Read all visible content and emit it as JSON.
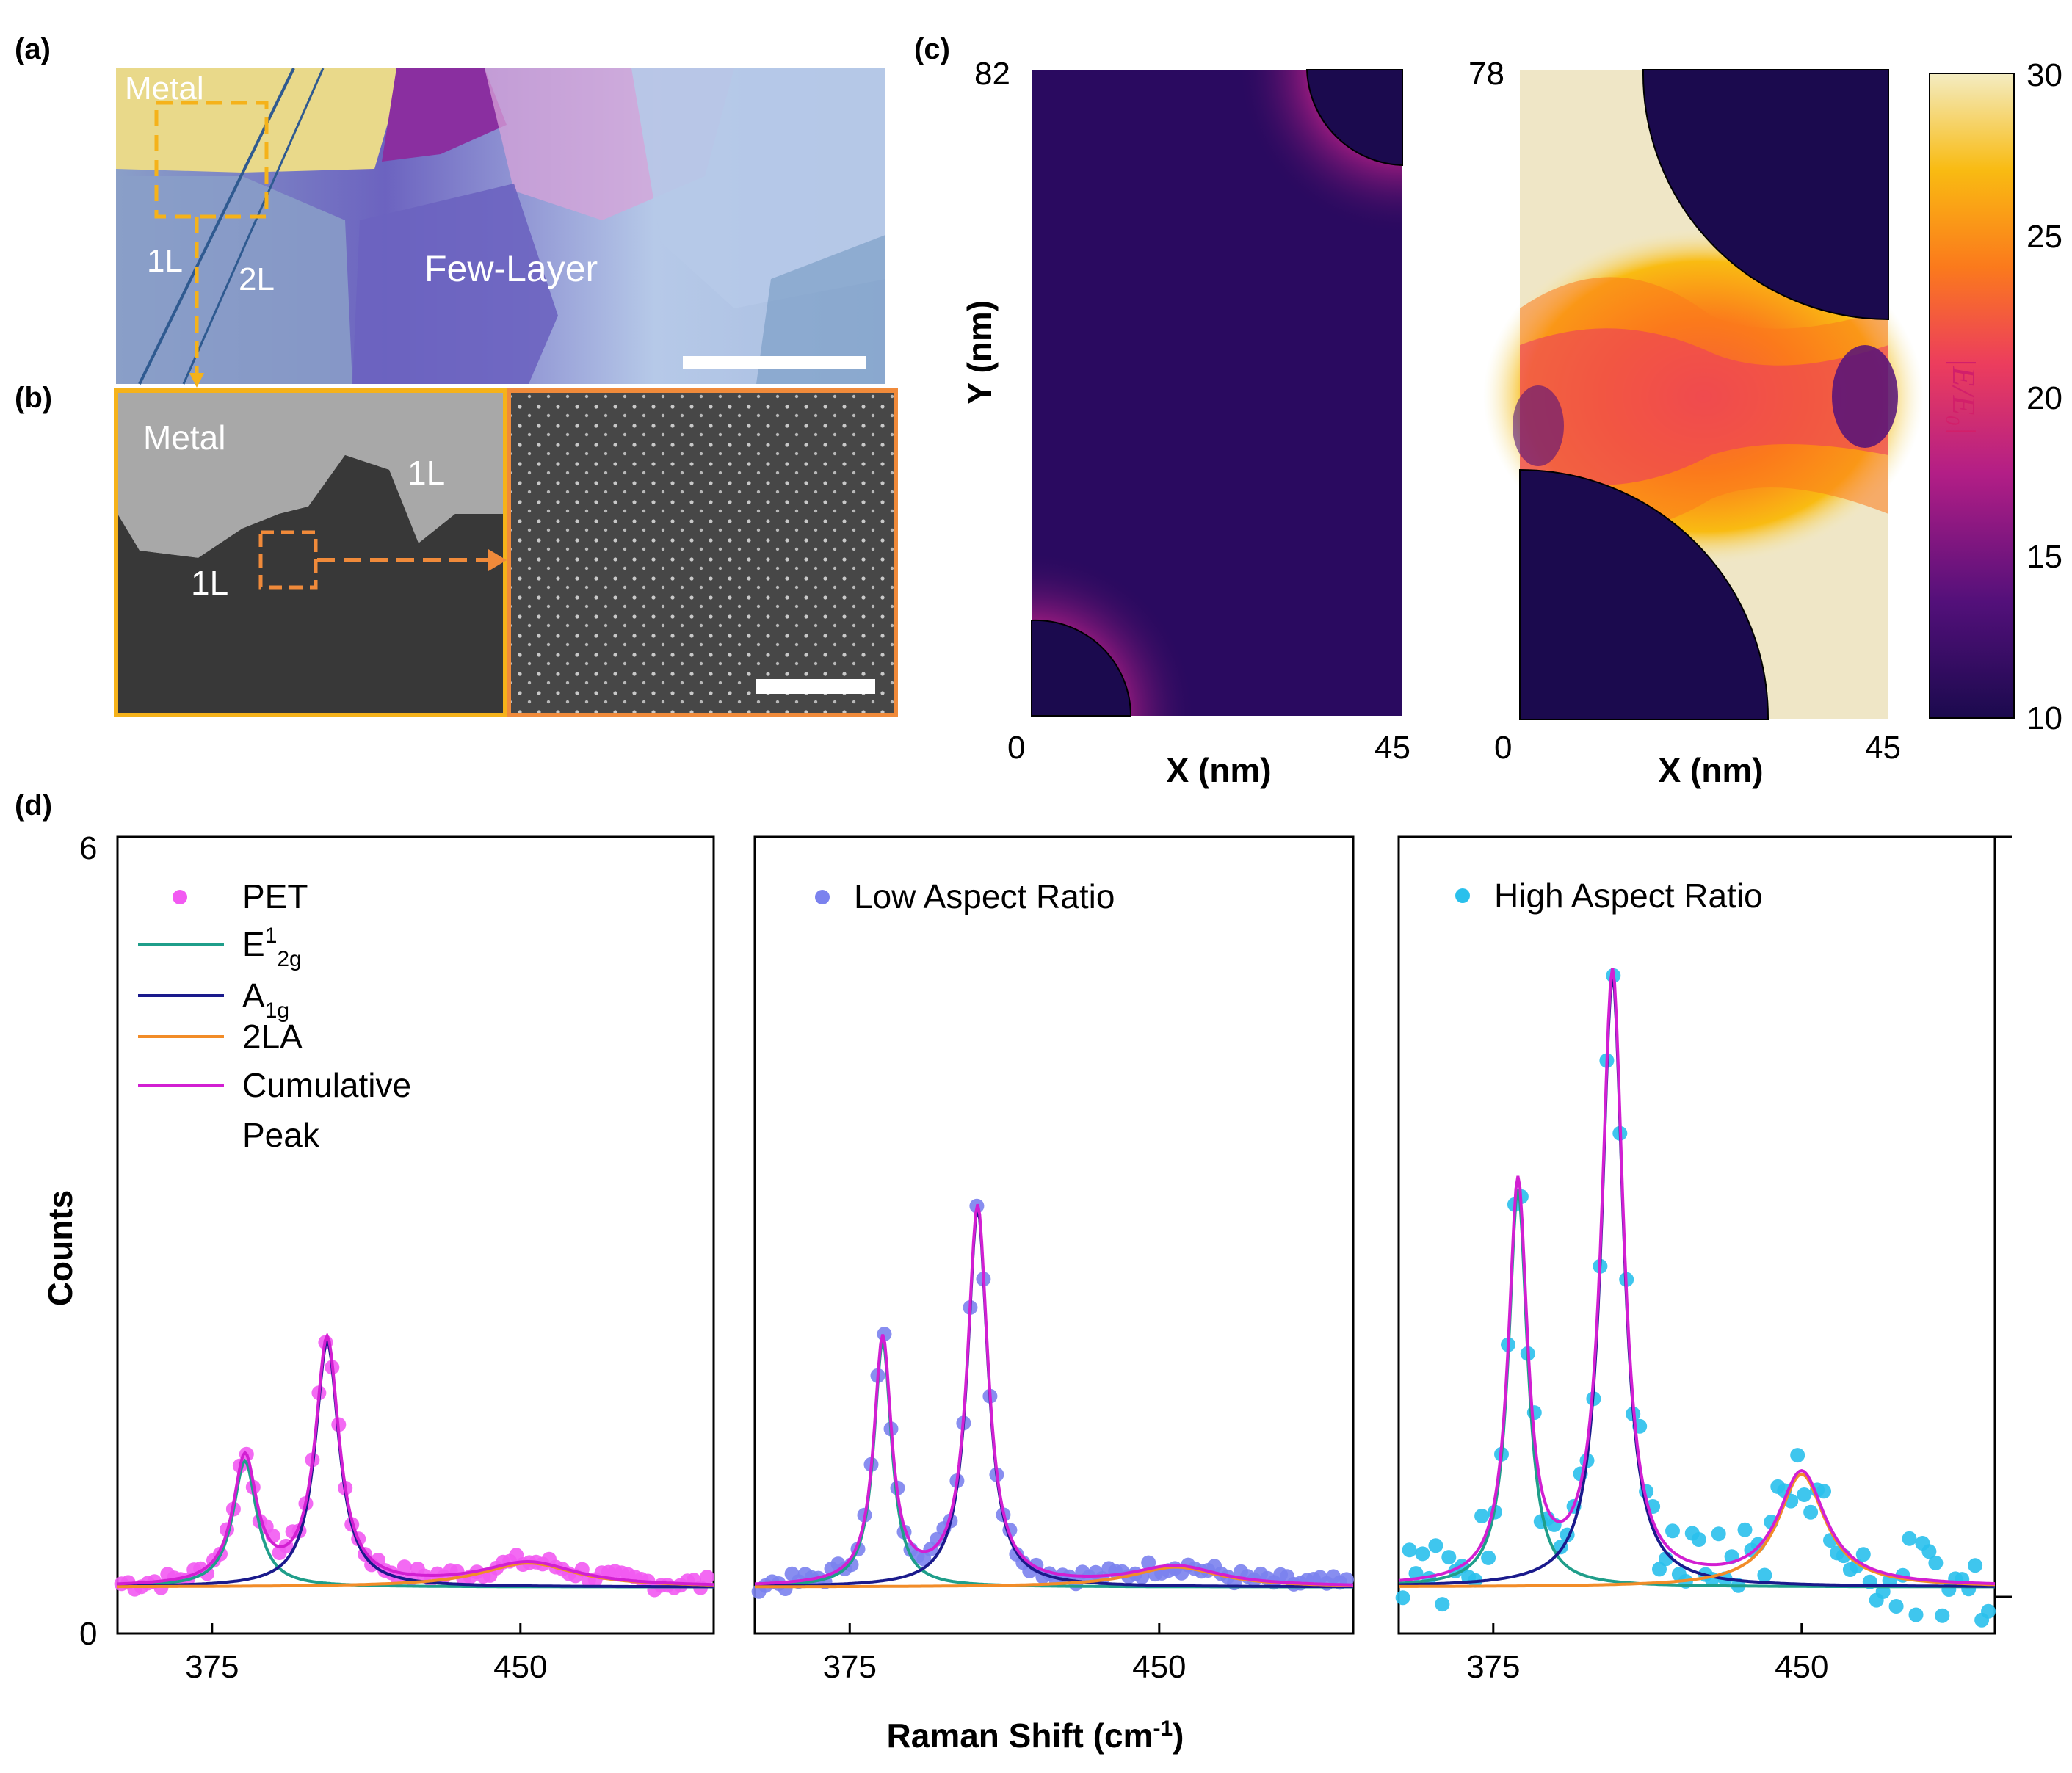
{
  "panels": {
    "a": {
      "label": "(a)",
      "regions": {
        "metal": "Metal",
        "one_layer": "1L",
        "two_layer": "2L",
        "few_layer": "Few-Layer"
      },
      "colors": {
        "metal": "#e9d98a",
        "one_layer": "#8a9fc8",
        "two_layer": "#6c63c0",
        "few_layer": "#b6c9e8",
        "purple_flake": "#8a2fa0",
        "highlight": "#f5b21a"
      }
    },
    "b": {
      "label": "(b)",
      "regions": {
        "metal": "Metal",
        "one_layer_top": "1L",
        "one_layer_bottom": "1L"
      },
      "colors": {
        "frame_left": "#f5b21a",
        "frame_right": "#f08a3a",
        "arrow": "#f08a3a"
      }
    },
    "c": {
      "label": "(c)",
      "left_map": {
        "y_max": "82",
        "x_min": "0",
        "x_max": "45"
      },
      "right_map": {
        "y_max": "78",
        "x_min": "0",
        "x_max": "45"
      },
      "x_label": "X (nm)",
      "y_label": "Y (nm)",
      "colorbar": {
        "label": "|E/E₀|",
        "ticks": [
          "30",
          "25",
          "20",
          "15",
          "10"
        ],
        "stops": [
          "#1b0a4e",
          "#53107a",
          "#b31e86",
          "#ec3d5d",
          "#fb7a1c",
          "#f9bb12",
          "#f3ecc2"
        ]
      }
    },
    "d": {
      "label": "(d)",
      "x_label": "Raman Shift (cm",
      "x_label_sup": "-1",
      "x_label_close": ")",
      "y_label": "Counts",
      "y_tick_top": "6",
      "y_tick_bottom": "0",
      "legend_panel1": {
        "pet": "PET",
        "e2g_main": "E",
        "e2g_sup": "1",
        "e2g_sub": "2g",
        "a1g_main": "A",
        "a1g_sub": "1g",
        "la": "2LA",
        "cumulative": "Cumulative",
        "cumulative_2": "Peak"
      },
      "legend_panel2": "Low Aspect Ratio",
      "legend_panel3": "High Aspect Ratio",
      "colors": {
        "E12g": "#1f9e8a",
        "A1g": "#1a1a8c",
        "2LA": "#f28c28",
        "cumulative": "#d21fd2",
        "pet": "#f25af2",
        "low": "#7b82ee",
        "high": "#2ac0ec"
      }
    }
  },
  "chart_data": [
    {
      "type": "scatter",
      "title": "PET",
      "xlabel": "Raman Shift (cm-1)",
      "ylabel": "Counts",
      "xlim": [
        352,
        497
      ],
      "ylim": [
        0,
        6
      ],
      "x_ticks": [
        "375",
        "450"
      ],
      "baseline": 0.35,
      "peaks": [
        {
          "name": "E12g",
          "center": 383,
          "amplitude": 0.95,
          "width": 3.5
        },
        {
          "name": "A1g",
          "center": 403,
          "amplitude": 1.85,
          "width": 3.5
        },
        {
          "name": "2LA",
          "center": 452,
          "amplitude": 0.18,
          "width": 14
        }
      ],
      "series": [
        {
          "name": "PET",
          "kind": "points"
        },
        {
          "name": "E12g",
          "kind": "line"
        },
        {
          "name": "A1g",
          "kind": "line"
        },
        {
          "name": "2LA",
          "kind": "line"
        },
        {
          "name": "Cumulative Peak",
          "kind": "line"
        }
      ]
    },
    {
      "type": "scatter",
      "title": "Low Aspect Ratio",
      "xlabel": "Raman Shift (cm-1)",
      "ylabel": "Counts",
      "xlim": [
        352,
        497
      ],
      "ylim": [
        0,
        6
      ],
      "x_ticks": [
        "375",
        "450"
      ],
      "baseline": 0.35,
      "peaks": [
        {
          "name": "E12g",
          "center": 383,
          "amplitude": 1.85,
          "width": 2.6
        },
        {
          "name": "A1g",
          "center": 406,
          "amplitude": 2.85,
          "width": 3.0
        },
        {
          "name": "2LA",
          "center": 454,
          "amplitude": 0.15,
          "width": 13
        }
      ],
      "series": [
        {
          "name": "Low Aspect Ratio",
          "kind": "points"
        },
        {
          "name": "E12g",
          "kind": "line"
        },
        {
          "name": "A1g",
          "kind": "line"
        },
        {
          "name": "2LA",
          "kind": "line"
        },
        {
          "name": "Cumulative Peak",
          "kind": "line"
        }
      ]
    },
    {
      "type": "scatter",
      "title": "High Aspect Ratio",
      "xlabel": "Raman Shift (cm-1)",
      "ylabel": "Counts",
      "xlim": [
        352,
        497
      ],
      "ylim": [
        0,
        6
      ],
      "x_ticks": [
        "375",
        "450"
      ],
      "baseline": 0.35,
      "peaks": [
        {
          "name": "E12g",
          "center": 381,
          "amplitude": 3.0,
          "width": 2.8
        },
        {
          "name": "A1g",
          "center": 404,
          "amplitude": 4.6,
          "width": 3.2
        },
        {
          "name": "2LA",
          "center": 450,
          "amplitude": 0.85,
          "width": 7
        }
      ],
      "series": [
        {
          "name": "High Aspect Ratio",
          "kind": "points"
        },
        {
          "name": "E12g",
          "kind": "line"
        },
        {
          "name": "A1g",
          "kind": "line"
        },
        {
          "name": "2LA",
          "kind": "line"
        },
        {
          "name": "Cumulative Peak",
          "kind": "line"
        }
      ]
    }
  ]
}
